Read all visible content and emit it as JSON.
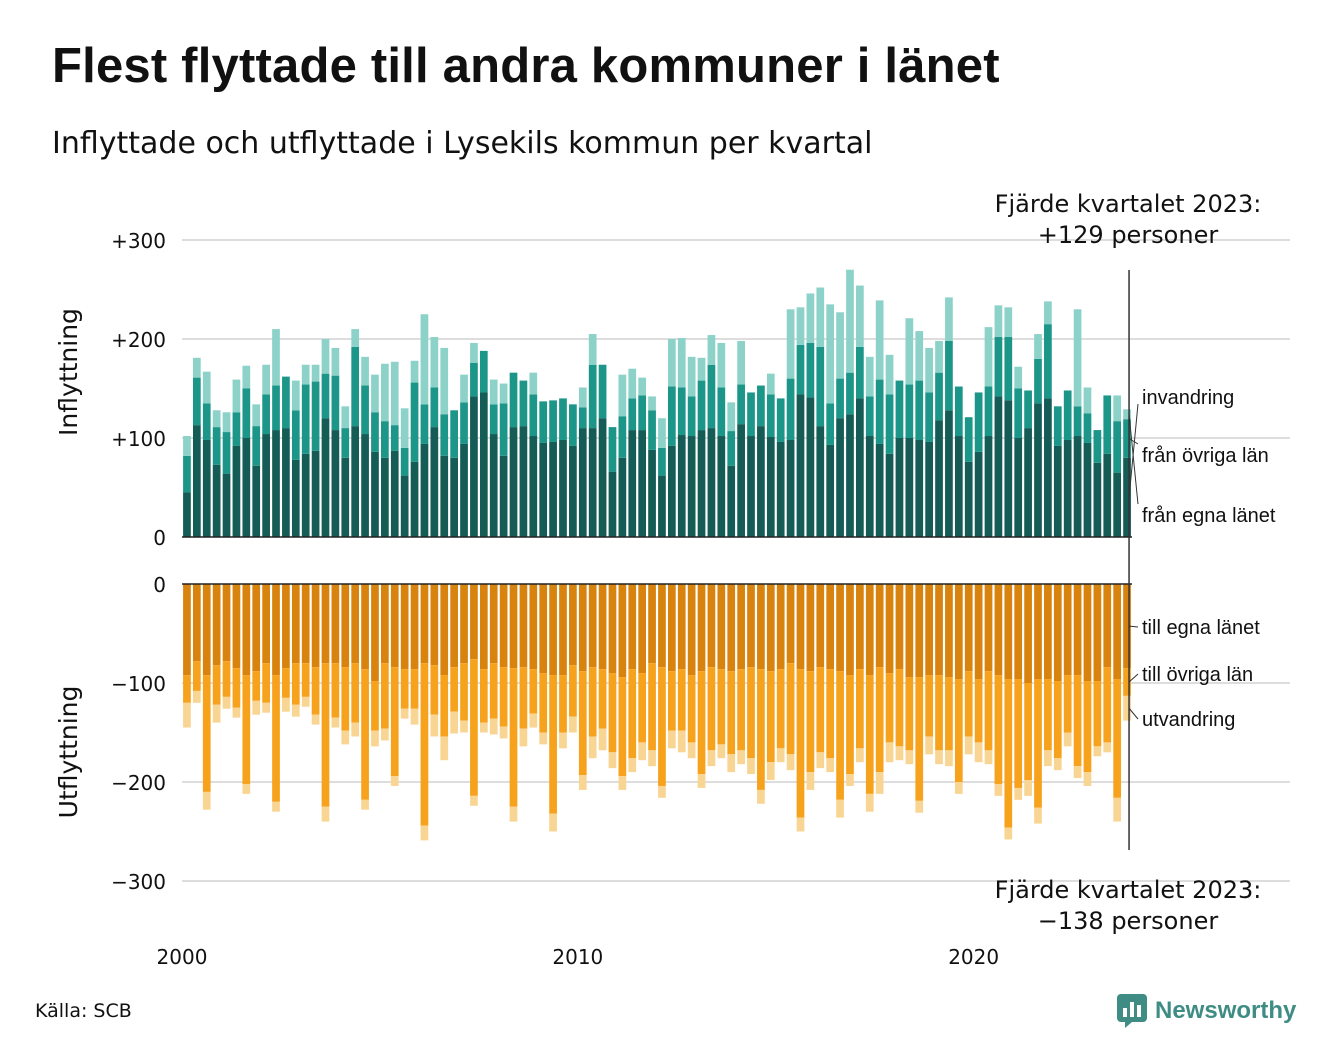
{
  "title": "Flest flyttade till andra kommuner i länet",
  "subtitle": "Inflyttade och utflyttade i Lysekils kommun per kvartal",
  "source": "Källa: SCB",
  "brand": "Newsworthy",
  "colors": {
    "in_own": "#155c57",
    "in_other": "#1c9688",
    "in_imm": "#8dd2c9",
    "out_own": "#d9830f",
    "out_other": "#f6a21c",
    "out_emig": "#f9d594",
    "grid": "#dddddd",
    "axis": "#222222",
    "brand": "#3e8c84"
  },
  "top_axis_title": "Inflyttning",
  "bottom_axis_title": "Utflyttning",
  "top_ticks": [
    "0",
    "+100",
    "+200",
    "+300"
  ],
  "bottom_ticks": [
    "0",
    "−100",
    "−200",
    "−300"
  ],
  "x_ticks": [
    "2000",
    "2010",
    "2020"
  ],
  "labels_in": [
    "invandring",
    "från övriga län",
    "från egna länet"
  ],
  "labels_out": [
    "till egna länet",
    "till övriga län",
    "utvandring"
  ],
  "annotation_top": [
    "Fjärde kvartalet 2023:",
    "+129 personer"
  ],
  "annotation_bottom": [
    "Fjärde kvartalet 2023:",
    "−138 personer"
  ],
  "chart_data": {
    "type": "bar",
    "stacked": true,
    "x_start": "2000 Q1",
    "x_end": "2023 Q4",
    "x_tick_values": [
      2000,
      2010,
      2020
    ],
    "ylim_top": [
      0,
      300
    ],
    "ylim_bottom": [
      -300,
      0
    ],
    "series_in": [
      {
        "name": "från egna länet",
        "values": [
          45,
          113,
          98,
          73,
          64,
          92,
          100,
          72,
          104,
          108,
          110,
          78,
          84,
          87,
          120,
          108,
          80,
          112,
          104,
          86,
          80,
          87,
          62,
          76,
          94,
          111,
          82,
          80,
          94,
          142,
          146,
          104,
          82,
          111,
          112,
          102,
          95,
          96,
          98,
          92,
          110,
          110,
          120,
          66,
          80,
          108,
          108,
          88,
          62,
          92,
          103,
          102,
          108,
          110,
          102,
          72,
          114,
          102,
          112,
          101,
          96,
          98,
          144,
          141,
          112,
          93,
          120,
          124,
          140,
          102,
          94,
          84,
          100,
          100,
          98,
          96,
          118,
          128,
          102,
          76,
          86,
          102,
          142,
          138,
          100,
          110,
          135,
          140,
          92,
          98,
          102,
          95,
          75,
          84,
          65,
          80
        ]
      },
      {
        "name": "från övriga län",
        "values": [
          37,
          48,
          37,
          38,
          42,
          34,
          50,
          40,
          40,
          45,
          52,
          50,
          70,
          70,
          45,
          55,
          30,
          80,
          49,
          40,
          37,
          26,
          28,
          80,
          40,
          40,
          42,
          48,
          42,
          34,
          42,
          30,
          53,
          55,
          46,
          42,
          42,
          42,
          42,
          42,
          21,
          64,
          54,
          45,
          42,
          32,
          35,
          40,
          28,
          60,
          48,
          40,
          50,
          64,
          49,
          35,
          40,
          44,
          41,
          43,
          44,
          62,
          50,
          55,
          80,
          42,
          40,
          42,
          52,
          40,
          65,
          60,
          58,
          54,
          60,
          50,
          48,
          70,
          50,
          45,
          60,
          50,
          60,
          64,
          50,
          38,
          45,
          75,
          40,
          50,
          30,
          30,
          33,
          59,
          52,
          39
        ]
      },
      {
        "name": "invandring",
        "values": [
          20,
          20,
          32,
          17,
          20,
          33,
          23,
          22,
          30,
          57,
          0,
          30,
          20,
          17,
          35,
          28,
          22,
          18,
          29,
          38,
          58,
          64,
          40,
          22,
          91,
          51,
          67,
          0,
          28,
          20,
          0,
          25,
          20,
          0,
          0,
          22,
          0,
          0,
          0,
          0,
          20,
          31,
          0,
          0,
          42,
          30,
          18,
          14,
          30,
          48,
          50,
          40,
          23,
          30,
          45,
          29,
          44,
          0,
          0,
          21,
          0,
          70,
          38,
          50,
          60,
          100,
          67,
          104,
          62,
          40,
          80,
          40,
          0,
          67,
          50,
          45,
          32,
          44,
          0,
          0,
          0,
          60,
          32,
          30,
          22,
          0,
          25,
          23,
          0,
          0,
          98,
          26,
          0,
          0,
          26,
          10
        ]
      }
    ],
    "series_out": [
      {
        "name": "till egna länet",
        "values": [
          -92,
          -78,
          -92,
          -82,
          -78,
          -85,
          -92,
          -88,
          -80,
          -92,
          -85,
          -80,
          -80,
          -84,
          -80,
          -80,
          -84,
          -80,
          -86,
          -98,
          -80,
          -84,
          -86,
          -86,
          -80,
          -82,
          -92,
          -84,
          -80,
          -76,
          -86,
          -80,
          -84,
          -85,
          -84,
          -86,
          -90,
          -92,
          -92,
          -82,
          -88,
          -84,
          -86,
          -90,
          -94,
          -86,
          -90,
          -80,
          -84,
          -88,
          -86,
          -92,
          -88,
          -84,
          -86,
          -88,
          -86,
          -84,
          -86,
          -88,
          -86,
          -80,
          -86,
          -88,
          -84,
          -86,
          -88,
          -92,
          -86,
          -92,
          -84,
          -90,
          -86,
          -94,
          -94,
          -92,
          -92,
          -94,
          -96,
          -88,
          -96,
          -88,
          -92,
          -96,
          -96,
          -100,
          -96,
          -96,
          -98,
          -92,
          -92,
          -98,
          -98,
          -84,
          -96,
          -85
        ]
      },
      {
        "name": "till övriga län",
        "values": [
          -28,
          -30,
          -118,
          -40,
          -36,
          -40,
          -110,
          -30,
          -40,
          -128,
          -30,
          -42,
          -34,
          -48,
          -145,
          -55,
          -64,
          -60,
          -132,
          -50,
          -66,
          -110,
          -40,
          -40,
          -164,
          -50,
          -62,
          -45,
          -58,
          -138,
          -54,
          -56,
          -60,
          -140,
          -62,
          -45,
          -60,
          -140,
          -58,
          -52,
          -105,
          -70,
          -60,
          -80,
          -100,
          -90,
          -70,
          -88,
          -120,
          -60,
          -62,
          -68,
          -104,
          -84,
          -76,
          -84,
          -82,
          -92,
          -122,
          -92,
          -80,
          -92,
          -150,
          -102,
          -86,
          -90,
          -130,
          -100,
          -80,
          -120,
          -106,
          -70,
          -78,
          -74,
          -125,
          -62,
          -76,
          -74,
          -104,
          -66,
          -64,
          -80,
          -110,
          -150,
          -110,
          -98,
          -130,
          -72,
          -78,
          -58,
          -92,
          -92,
          -66,
          -76,
          -120,
          -28
        ]
      },
      {
        "name": "utvandring",
        "values": [
          -25,
          -12,
          -18,
          -18,
          -12,
          -10,
          -10,
          -14,
          -10,
          -10,
          -14,
          -12,
          -10,
          -10,
          -15,
          -10,
          -14,
          -14,
          -10,
          -16,
          -12,
          -10,
          -10,
          -16,
          -15,
          -22,
          -24,
          -22,
          -12,
          -10,
          -10,
          -16,
          -12,
          -15,
          -18,
          -14,
          -12,
          -18,
          -16,
          -16,
          -15,
          -22,
          -22,
          -16,
          -14,
          -14,
          -18,
          -16,
          -12,
          -18,
          -22,
          -16,
          -14,
          -16,
          -14,
          -18,
          -14,
          -16,
          -14,
          -18,
          -14,
          -16,
          -14,
          -18,
          -16,
          -14,
          -18,
          -12,
          -14,
          -18,
          -22,
          -20,
          -14,
          -14,
          -12,
          -18,
          -14,
          -16,
          -12,
          -18,
          -20,
          -14,
          -12,
          -12,
          -12,
          -16,
          -16,
          -16,
          -12,
          -14,
          -12,
          -14,
          -10,
          -10,
          -24,
          -25
        ]
      }
    ]
  }
}
